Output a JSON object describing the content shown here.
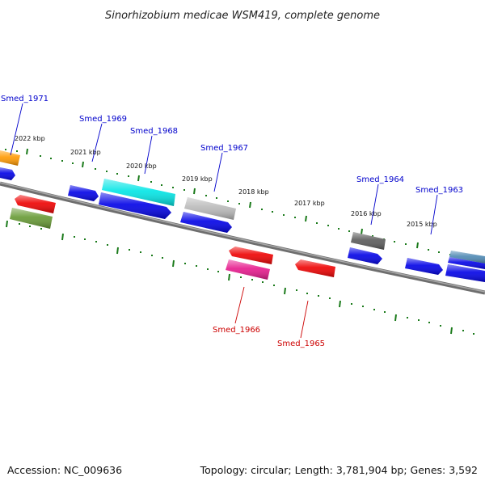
{
  "title": "Sinorhizobium medicae WSM419, complete genome",
  "footer": {
    "accession": "Accession: NC_009636",
    "summary": "Topology: circular; Length: 3,781,904 bp; Genes: 3,592"
  },
  "scale_labels": [
    "2022 kbp",
    "2021 kbp",
    "2020 kbp",
    "2019 kbp",
    "2018 kbp",
    "2017 kbp",
    "2016 kbp",
    "2015 kbp"
  ],
  "gene_labels": {
    "g1971": "Smed_1971",
    "g1969": "Smed_1969",
    "g1968": "Smed_1968",
    "g1967": "Smed_1967",
    "g1964": "Smed_1964",
    "g1963": "Smed_1963",
    "g1966": "Smed_1966",
    "g1965": "Smed_1965"
  },
  "colors": {
    "backbone": "#808080",
    "ticks": "#1a7a1a",
    "blue": "#0000e6",
    "red": "#ee0000",
    "cyan": "#00e5e5",
    "orange": "#ff9900",
    "olive": "#669933",
    "magenta": "#e6198c",
    "silver": "#b8b8b8",
    "darkgray": "#5a5a5a",
    "steel": "#4d88b3"
  }
}
